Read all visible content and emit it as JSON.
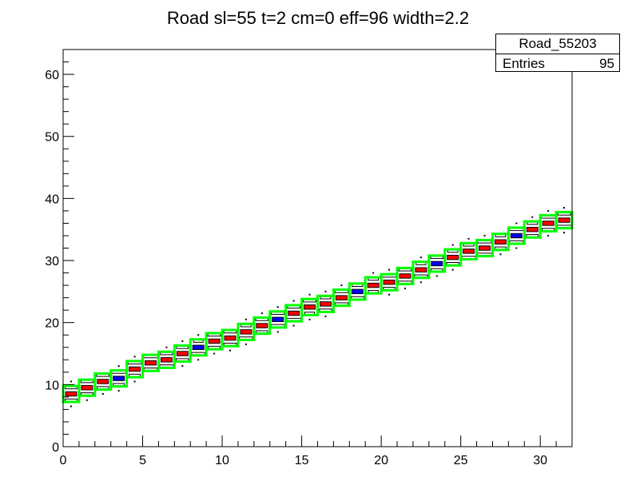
{
  "chart_data": {
    "type": "heatmap",
    "title": "Road sl=55 t=2 cm=0 eff=96 width=2.2",
    "xlim": [
      0,
      32
    ],
    "ylim": [
      0,
      64
    ],
    "x_ticks": [
      "0",
      "5",
      "10",
      "15",
      "20",
      "25",
      "30"
    ],
    "y_ticks": [
      "0",
      "10",
      "20",
      "30",
      "40",
      "50",
      "60"
    ],
    "grid": false,
    "stats": {
      "name": "Road_55203",
      "entries_label": "Entries",
      "entries_value": "95"
    },
    "road_bins": [
      [
        0.5,
        8.5
      ],
      [
        1.5,
        9.5
      ],
      [
        2.5,
        10.5
      ],
      [
        3.5,
        11
      ],
      [
        4.5,
        12.5
      ],
      [
        5.5,
        13.5
      ],
      [
        6.5,
        14
      ],
      [
        7.5,
        15
      ],
      [
        8.5,
        16
      ],
      [
        9.5,
        17
      ],
      [
        10.5,
        17.5
      ],
      [
        11.5,
        18.5
      ],
      [
        12.5,
        19.5
      ],
      [
        13.5,
        20.5
      ],
      [
        14.5,
        21.5
      ],
      [
        15.5,
        22.5
      ],
      [
        16.5,
        23
      ],
      [
        17.5,
        24
      ],
      [
        18.5,
        25
      ],
      [
        19.5,
        26
      ],
      [
        20.5,
        26.5
      ],
      [
        21.5,
        27.5
      ],
      [
        22.5,
        28.5
      ],
      [
        23.5,
        29.5
      ],
      [
        24.5,
        30.5
      ],
      [
        25.5,
        31.5
      ],
      [
        26.5,
        32
      ],
      [
        27.5,
        33
      ],
      [
        28.5,
        34
      ],
      [
        29.5,
        35
      ],
      [
        30.5,
        36
      ],
      [
        31.5,
        36.5
      ]
    ],
    "colors": {
      "road": "#00ff00",
      "peak": "#ff0000",
      "secondary": "#0000ff",
      "cell": "#000000"
    }
  }
}
